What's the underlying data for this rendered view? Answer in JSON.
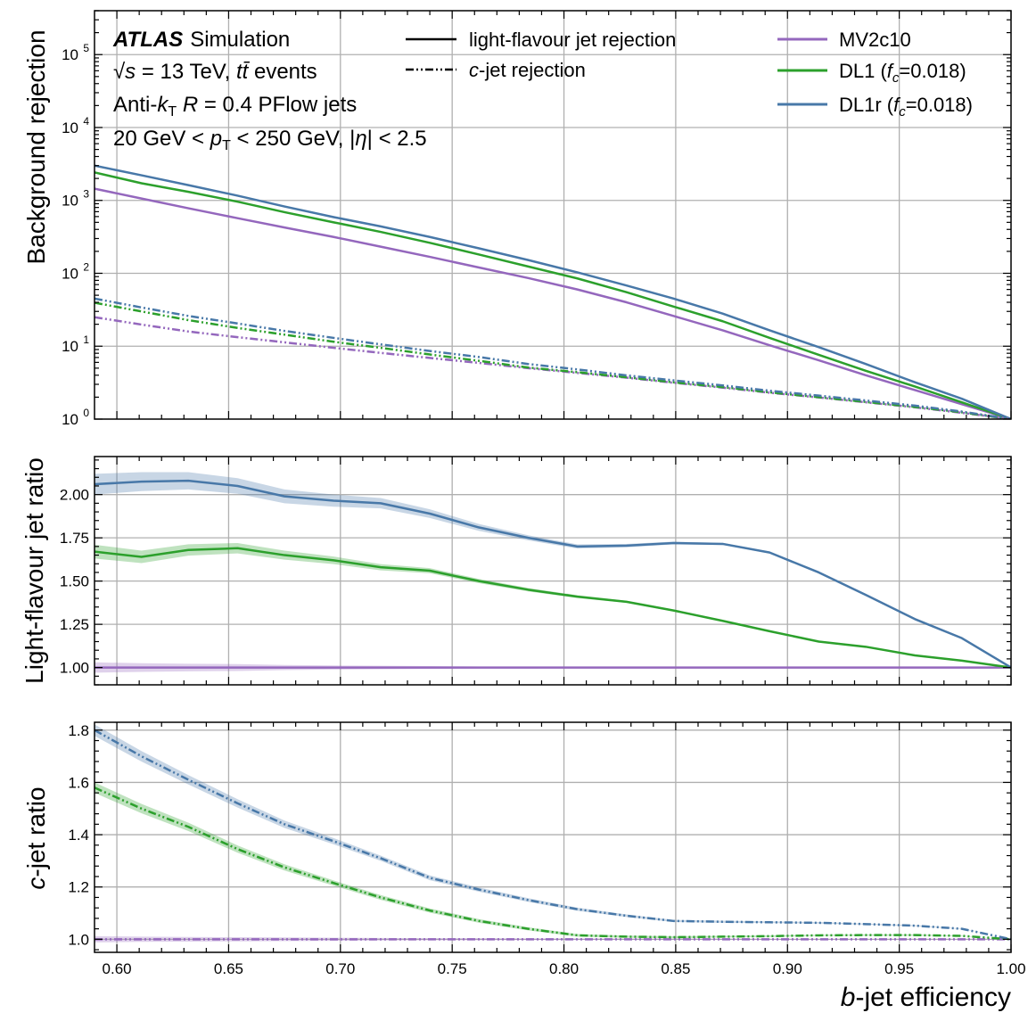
{
  "chart_data": [
    {
      "type": "line",
      "panel": "rejection",
      "ylabel": "Background rejection",
      "yscale": "log",
      "ylim": [
        1,
        400000
      ],
      "xlim": [
        0.59,
        1.0
      ],
      "grid": true,
      "ytick_labels": [
        {
          "value": 1,
          "base": "10",
          "exp": "0"
        },
        {
          "value": 10,
          "base": "10",
          "exp": "1"
        },
        {
          "value": 100,
          "base": "10",
          "exp": "2"
        },
        {
          "value": 1000,
          "base": "10",
          "exp": "3"
        },
        {
          "value": 10000,
          "base": "10",
          "exp": "4"
        },
        {
          "value": 100000,
          "base": "10",
          "exp": "5"
        }
      ],
      "annotations": {
        "atlas": "ATLAS",
        "simulation": "Simulation",
        "energy_line": [
          "√",
          "s",
          " = 13 TeV, ",
          "t",
          "t̄",
          " events"
        ],
        "jets_line": [
          "Anti-",
          "k",
          "T",
          " ",
          "R",
          " = 0.4 PFlow jets"
        ],
        "cuts_line": [
          "20 GeV < ",
          "p",
          "T",
          " < 250 GeV, |",
          "η",
          "| < 2.5"
        ]
      },
      "legend": {
        "placement": "top",
        "linestyles": [
          {
            "label": "light-flavour jet rejection",
            "style": "solid"
          },
          {
            "label_italic": "c",
            "label_rest": "-jet rejection",
            "style": "dashdot"
          }
        ],
        "taggers": [
          {
            "label": "MV2c10",
            "color": "#9467bd"
          },
          {
            "label_main": "DL1 (",
            "label_f": "f",
            "label_sub": "c",
            "label_end": "=0.018)",
            "color": "#2ca02c"
          },
          {
            "label_main": "DL1r (",
            "label_f": "f",
            "label_sub": "c",
            "label_end": "=0.018)",
            "color": "#4878a8"
          }
        ]
      },
      "x": [
        0.59,
        0.611,
        0.632,
        0.654,
        0.675,
        0.697,
        0.718,
        0.74,
        0.762,
        0.784,
        0.806,
        0.828,
        0.849,
        0.871,
        0.892,
        0.914,
        0.935,
        0.957,
        0.978,
        1.0
      ],
      "series": [
        {
          "name": "MV2c10",
          "style": "solid",
          "color": "#9467bd",
          "values": [
            1450,
            1060,
            780,
            570,
            425,
            315,
            232,
            168,
            120,
            86,
            60,
            40,
            26,
            16.5,
            10.3,
            6.4,
            4.0,
            2.5,
            1.6,
            1.0
          ]
        },
        {
          "name": "DL1",
          "style": "solid",
          "color": "#2ca02c",
          "values": [
            2420,
            1720,
            1310,
            960,
            690,
            500,
            370,
            262,
            181,
            124,
            85,
            55,
            35,
            22,
            13.0,
            7.6,
            4.6,
            2.8,
            1.7,
            1.0
          ]
        },
        {
          "name": "DL1r",
          "style": "solid",
          "color": "#4878a8",
          "values": [
            3000,
            2210,
            1620,
            1160,
            825,
            590,
            440,
            315,
            220,
            152,
            103,
            68,
            45,
            28,
            16.5,
            9.7,
            5.7,
            3.2,
            1.9,
            1.0
          ]
        },
        {
          "name": "MV2c10",
          "style": "dashdot",
          "color": "#9467bd",
          "values": [
            25,
            19.8,
            15.9,
            13.3,
            11.3,
            9.5,
            8.1,
            6.9,
            5.9,
            5.0,
            4.3,
            3.7,
            3.15,
            2.7,
            2.3,
            1.98,
            1.7,
            1.45,
            1.22,
            1.0
          ]
        },
        {
          "name": "DL1",
          "style": "dashdot",
          "color": "#2ca02c",
          "values": [
            39.5,
            30.0,
            22.8,
            17.8,
            14.4,
            11.5,
            9.5,
            7.7,
            6.3,
            5.1,
            4.4,
            3.75,
            3.2,
            2.75,
            2.33,
            2.0,
            1.72,
            1.47,
            1.24,
            1.0
          ]
        },
        {
          "name": "DL1r",
          "style": "dashdot",
          "color": "#4878a8",
          "values": [
            45,
            34,
            26,
            20.5,
            16.2,
            13.0,
            10.6,
            8.6,
            7.1,
            5.7,
            4.8,
            3.98,
            3.4,
            2.9,
            2.45,
            2.1,
            1.8,
            1.53,
            1.27,
            1.0
          ]
        }
      ]
    },
    {
      "type": "line",
      "panel": "light-ratio",
      "ylabel": "Light-flavour jet ratio",
      "ylim": [
        0.9,
        2.22
      ],
      "xlim": [
        0.59,
        1.0
      ],
      "grid": true,
      "yticks": [
        1.0,
        1.25,
        1.5,
        1.75,
        2.0
      ],
      "ytick_labels": [
        "1.00",
        "1.25",
        "1.50",
        "1.75",
        "2.00"
      ],
      "x": [
        0.59,
        0.611,
        0.632,
        0.654,
        0.675,
        0.697,
        0.718,
        0.74,
        0.762,
        0.784,
        0.806,
        0.828,
        0.849,
        0.871,
        0.892,
        0.914,
        0.935,
        0.957,
        0.978,
        1.0
      ],
      "series": [
        {
          "name": "MV2c10",
          "color": "#9467bd",
          "values": [
            1.0,
            1.0,
            1.0,
            1.0,
            1.0,
            1.0,
            1.0,
            1.0,
            1.0,
            1.0,
            1.0,
            1.0,
            1.0,
            1.0,
            1.0,
            1.0,
            1.0,
            1.0,
            1.0,
            1.0
          ],
          "band": [
            0.03,
            0.025,
            0.022,
            0.02,
            0.015,
            0.012,
            0.01,
            0.008,
            0.006,
            0.005,
            0.004,
            0.003,
            0.003,
            0.002,
            0.002,
            0.001,
            0.001,
            0.001,
            0.001,
            0.0
          ]
        },
        {
          "name": "DL1",
          "color": "#2ca02c",
          "values": [
            1.67,
            1.64,
            1.68,
            1.69,
            1.65,
            1.62,
            1.58,
            1.56,
            1.5,
            1.45,
            1.41,
            1.38,
            1.33,
            1.27,
            1.21,
            1.15,
            1.12,
            1.07,
            1.04,
            1.0
          ],
          "band": [
            0.04,
            0.036,
            0.033,
            0.03,
            0.026,
            0.022,
            0.018,
            0.015,
            0.012,
            0.01,
            0.008,
            0.006,
            0.005,
            0.004,
            0.003,
            0.003,
            0.002,
            0.002,
            0.001,
            0.0
          ]
        },
        {
          "name": "DL1r",
          "color": "#4878a8",
          "values": [
            2.06,
            2.075,
            2.08,
            2.05,
            1.99,
            1.965,
            1.95,
            1.89,
            1.81,
            1.75,
            1.7,
            1.705,
            1.72,
            1.715,
            1.665,
            1.55,
            1.42,
            1.28,
            1.17,
            1.0
          ],
          "band": [
            0.06,
            0.055,
            0.05,
            0.045,
            0.04,
            0.035,
            0.03,
            0.025,
            0.02,
            0.015,
            0.012,
            0.01,
            0.008,
            0.006,
            0.005,
            0.004,
            0.003,
            0.002,
            0.001,
            0.0
          ]
        }
      ]
    },
    {
      "type": "line",
      "panel": "c-ratio",
      "ylabel_italic": "c",
      "ylabel_rest": "-jet ratio",
      "ylim": [
        0.95,
        1.83
      ],
      "xlim": [
        0.59,
        1.0
      ],
      "grid": true,
      "yticks": [
        1.0,
        1.2,
        1.4,
        1.6,
        1.8
      ],
      "ytick_labels": [
        "1.0",
        "1.2",
        "1.4",
        "1.6",
        "1.8"
      ],
      "xticks": [
        0.6,
        0.65,
        0.7,
        0.75,
        0.8,
        0.85,
        0.9,
        0.95,
        1.0
      ],
      "xtick_labels": [
        "0.60",
        "0.65",
        "0.70",
        "0.75",
        "0.80",
        "0.85",
        "0.90",
        "0.95",
        "1.00"
      ],
      "xlabel_italic": "b",
      "xlabel_rest": "-jet efficiency",
      "x": [
        0.59,
        0.611,
        0.632,
        0.654,
        0.675,
        0.697,
        0.718,
        0.74,
        0.762,
        0.784,
        0.806,
        0.828,
        0.849,
        0.871,
        0.892,
        0.914,
        0.935,
        0.957,
        0.978,
        1.0
      ],
      "series": [
        {
          "name": "MV2c10",
          "color": "#9467bd",
          "style": "dashdot",
          "values": [
            1.0,
            1.0,
            1.0,
            1.0,
            1.0,
            1.0,
            1.0,
            1.0,
            1.0,
            1.0,
            1.0,
            1.0,
            1.0,
            1.0,
            1.0,
            1.0,
            1.0,
            1.0,
            1.0,
            1.0
          ],
          "band": [
            0.012,
            0.01,
            0.009,
            0.008,
            0.007,
            0.006,
            0.005,
            0.004,
            0.004,
            0.003,
            0.003,
            0.002,
            0.002,
            0.002,
            0.001,
            0.001,
            0.001,
            0.001,
            0.001,
            0.0
          ]
        },
        {
          "name": "DL1",
          "color": "#2ca02c",
          "style": "dashdot",
          "values": [
            1.58,
            1.5,
            1.43,
            1.345,
            1.275,
            1.215,
            1.16,
            1.11,
            1.07,
            1.04,
            1.015,
            1.01,
            1.008,
            1.01,
            1.012,
            1.015,
            1.016,
            1.016,
            1.013,
            1.0
          ],
          "band": [
            0.02,
            0.018,
            0.016,
            0.014,
            0.012,
            0.01,
            0.009,
            0.008,
            0.007,
            0.006,
            0.005,
            0.004,
            0.004,
            0.003,
            0.003,
            0.002,
            0.002,
            0.002,
            0.001,
            0.0
          ]
        },
        {
          "name": "DL1r",
          "color": "#4878a8",
          "style": "dashdot",
          "values": [
            1.8,
            1.7,
            1.61,
            1.52,
            1.44,
            1.375,
            1.31,
            1.235,
            1.19,
            1.15,
            1.115,
            1.09,
            1.07,
            1.067,
            1.065,
            1.063,
            1.058,
            1.052,
            1.04,
            1.0
          ],
          "band": [
            0.022,
            0.02,
            0.018,
            0.016,
            0.014,
            0.012,
            0.01,
            0.009,
            0.008,
            0.007,
            0.006,
            0.005,
            0.004,
            0.004,
            0.003,
            0.003,
            0.002,
            0.002,
            0.001,
            0.0
          ]
        }
      ]
    }
  ]
}
